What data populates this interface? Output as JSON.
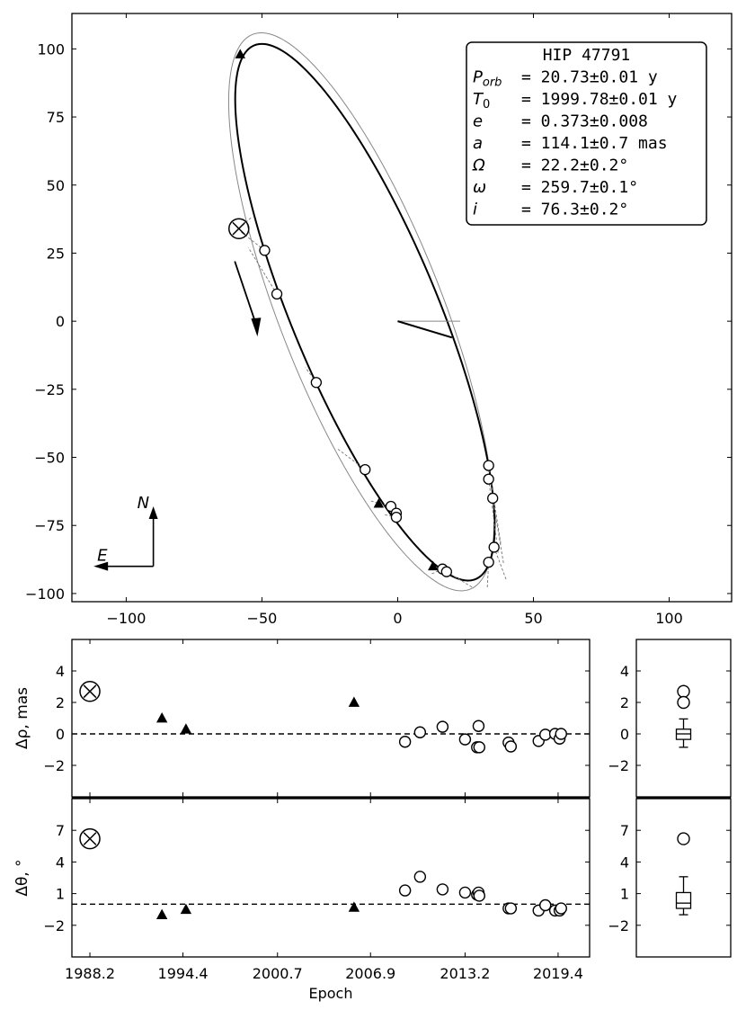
{
  "chart_data": [
    {
      "name": "orbit",
      "type": "scatter",
      "xlim": [
        -120,
        123
      ],
      "ylim": [
        -103,
        113
      ],
      "xticks": [
        -100,
        -50,
        0,
        50,
        100
      ],
      "yticks": [
        -100,
        -75,
        -50,
        -25,
        0,
        25,
        50,
        75,
        100
      ],
      "xtick_labels": [
        "−100",
        "−50",
        "0",
        "50",
        "100"
      ],
      "ytick_labels": [
        "−100",
        "−75",
        "−50",
        "−25",
        "0",
        "25",
        "50",
        "75",
        "100"
      ],
      "legend_box": {
        "lines": [
          {
            "key": "title",
            "label": "",
            "value": "HIP 47791"
          },
          {
            "key": "porb",
            "label": "P",
            "sub": "orb",
            "value": "= 20.73±0.01 y"
          },
          {
            "key": "t0",
            "label": "T",
            "sub": "0",
            "value": "= 1999.78±0.01 y"
          },
          {
            "key": "e",
            "label": "e",
            "sub": "",
            "value": "= 0.373±0.008"
          },
          {
            "key": "a",
            "label": "a",
            "sub": "",
            "value": "= 114.1±0.7 mas"
          },
          {
            "key": "omega_big",
            "label": "Ω",
            "sub": "",
            "value": "= 22.2±0.2°"
          },
          {
            "key": "omega_small",
            "label": "ω",
            "sub": "",
            "value": "= 259.7±0.1°"
          },
          {
            "key": "i",
            "label": "i",
            "sub": "",
            "value": "= 76.3±0.2°"
          }
        ]
      },
      "compass": {
        "north": "N",
        "east": "E"
      },
      "fitted_orbit": {
        "period": 20.73,
        "t0": 1999.78,
        "e": 0.373,
        "a": 114.1,
        "Omega": 22.2,
        "omega": 259.7,
        "i": 76.3
      },
      "prior_orbit": {
        "period": 20.73,
        "t0": 1999.78,
        "e": 0.38,
        "a": 118.0,
        "Omega": 21.0,
        "omega": 259.7,
        "i": 75.2
      },
      "triangles": [
        [
          -58,
          98
        ],
        [
          -7,
          -67
        ],
        [
          13,
          -90
        ]
      ],
      "crossed_circle": [
        -58.5,
        34
      ],
      "circles": [
        [
          -49,
          26
        ],
        [
          -44.5,
          10
        ],
        [
          -30,
          -22.5
        ],
        [
          -12,
          -54.5
        ],
        [
          -2.5,
          -68
        ],
        [
          -0.5,
          -70.5
        ],
        [
          -0.5,
          -72
        ],
        [
          16.5,
          -91
        ],
        [
          18,
          -92
        ],
        [
          33.5,
          -53
        ],
        [
          33.5,
          -58
        ],
        [
          35,
          -65
        ],
        [
          35.5,
          -83
        ],
        [
          33.5,
          -88.5
        ]
      ],
      "residual_lines": [
        [
          -58.5,
          34,
          -54,
          38
        ],
        [
          -49,
          26,
          -58,
          33
        ],
        [
          -44.5,
          10,
          -55,
          27
        ],
        [
          -30,
          -22.5,
          -34,
          -17
        ],
        [
          -12,
          -54.5,
          -22,
          -47
        ],
        [
          -2.5,
          -68,
          -10,
          -66
        ],
        [
          -0.5,
          -72,
          -5,
          -71
        ],
        [
          16.5,
          -91,
          12,
          -93
        ],
        [
          33.5,
          -53,
          38,
          -82
        ],
        [
          33.5,
          -58,
          37,
          -85
        ],
        [
          35,
          -65,
          39,
          -89
        ],
        [
          35.5,
          -83,
          40,
          -95
        ],
        [
          33.5,
          -88.5,
          33,
          -98
        ],
        [
          18,
          -92,
          28,
          -98
        ]
      ],
      "periastron_line": [
        [
          0,
          0
        ],
        [
          20,
          -6
        ]
      ],
      "node_line": [
        [
          0,
          0
        ],
        [
          23,
          0
        ]
      ]
    },
    {
      "name": "rho_residuals",
      "type": "scatter",
      "ylabel": "Δρ, mas",
      "xlim": [
        1987.0,
        2021.5
      ],
      "ylim": [
        -4.0,
        6.0
      ],
      "yticks": [
        -2,
        0,
        2,
        4
      ],
      "ytick_labels": [
        "−2",
        "0",
        "2",
        "4"
      ],
      "crossed_circle": [
        [
          1988.2,
          2.7
        ]
      ],
      "triangles": [
        [
          1993.0,
          1.0
        ],
        [
          1994.6,
          0.3
        ],
        [
          2005.8,
          2.0
        ]
      ],
      "circles": [
        [
          2009.2,
          -0.5
        ],
        [
          2010.2,
          0.1
        ],
        [
          2011.7,
          0.45
        ],
        [
          2013.2,
          -0.35
        ],
        [
          2014.0,
          -0.85
        ],
        [
          2014.15,
          -0.85
        ],
        [
          2014.1,
          0.5
        ],
        [
          2016.1,
          -0.55
        ],
        [
          2016.25,
          -0.8
        ],
        [
          2018.1,
          -0.45
        ],
        [
          2018.55,
          -0.05
        ],
        [
          2019.2,
          0.0
        ],
        [
          2019.5,
          -0.3
        ],
        [
          2019.6,
          0.0
        ]
      ],
      "box_circles": [
        2.7,
        2.0
      ],
      "box": {
        "q1": -0.35,
        "median": 0.0,
        "q3": 0.3,
        "whisker_low": -0.85,
        "whisker_high": 0.95
      },
      "box_ytick_labels": [
        "−2",
        "0",
        "2",
        "4"
      ]
    },
    {
      "name": "theta_residuals",
      "type": "scatter",
      "ylabel": "Δθ, °",
      "xlabel": "Epoch",
      "xlim": [
        1987.0,
        2021.5
      ],
      "ylim": [
        -5.0,
        10.0
      ],
      "xticks": [
        1988.2,
        1994.4,
        2000.7,
        2006.9,
        2013.2,
        2019.4
      ],
      "xtick_labels": [
        "1988.2",
        "1994.4",
        "2000.7",
        "2006.9",
        "2013.2",
        "2019.4"
      ],
      "yticks": [
        -2,
        1,
        4,
        7
      ],
      "ytick_labels": [
        "−2",
        "1",
        "4",
        "7"
      ],
      "crossed_circle": [
        [
          1988.2,
          6.2
        ]
      ],
      "triangles": [
        [
          1993.0,
          -1.0
        ],
        [
          1994.6,
          -0.5
        ],
        [
          2005.8,
          -0.3
        ]
      ],
      "circles": [
        [
          2009.2,
          1.3
        ],
        [
          2010.2,
          2.6
        ],
        [
          2011.7,
          1.4
        ],
        [
          2013.2,
          1.1
        ],
        [
          2014.0,
          0.9
        ],
        [
          2014.1,
          1.1
        ],
        [
          2014.15,
          0.8
        ],
        [
          2016.1,
          -0.4
        ],
        [
          2016.25,
          -0.4
        ],
        [
          2018.1,
          -0.6
        ],
        [
          2018.55,
          -0.1
        ],
        [
          2019.2,
          -0.6
        ],
        [
          2019.5,
          -0.6
        ],
        [
          2019.6,
          -0.4
        ]
      ],
      "box_circles": [
        6.2
      ],
      "box": {
        "q1": -0.4,
        "median": 0.1,
        "q3": 1.1,
        "whisker_low": -1.0,
        "whisker_high": 2.6
      },
      "box_ytick_labels": [
        "−2",
        "1",
        "4",
        "7"
      ]
    }
  ]
}
